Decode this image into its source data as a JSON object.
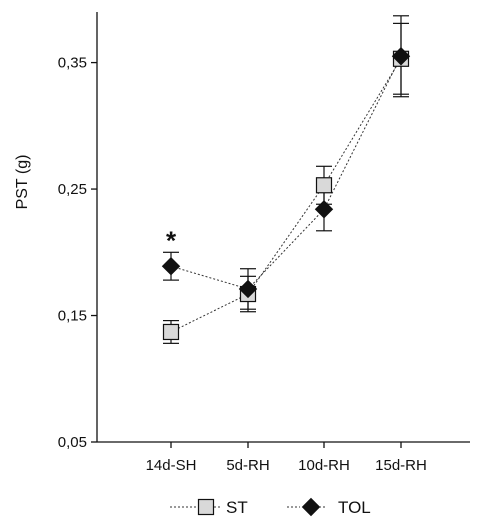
{
  "chart_data": {
    "type": "line",
    "title": "",
    "xlabel": "",
    "ylabel": "PST (g)",
    "categories": [
      "14d-SH",
      "5d-RH",
      "10d-RH",
      "15d-RH"
    ],
    "ylim": [
      0.05,
      0.39
    ],
    "yticks": [
      0.05,
      0.15,
      0.25,
      0.35
    ],
    "ytick_labels": [
      "0,05",
      "0,15",
      "0,25",
      "0,35"
    ],
    "grid": false,
    "legend_position": "bottom",
    "series": [
      {
        "name": "ST",
        "marker": "square",
        "color": "#d9d9d9",
        "line": "dotted",
        "values": [
          0.137,
          0.167,
          0.253,
          0.353
        ],
        "errors": [
          0.009,
          0.014,
          0.015,
          0.028
        ]
      },
      {
        "name": "TOL",
        "marker": "diamond",
        "color": "#111111",
        "line": "dotted",
        "values": [
          0.189,
          0.171,
          0.234,
          0.355
        ],
        "errors": [
          0.011,
          0.016,
          0.017,
          0.032
        ]
      }
    ],
    "annotations": [
      {
        "text": "*",
        "category": "14d-SH",
        "value": 0.215
      }
    ]
  }
}
